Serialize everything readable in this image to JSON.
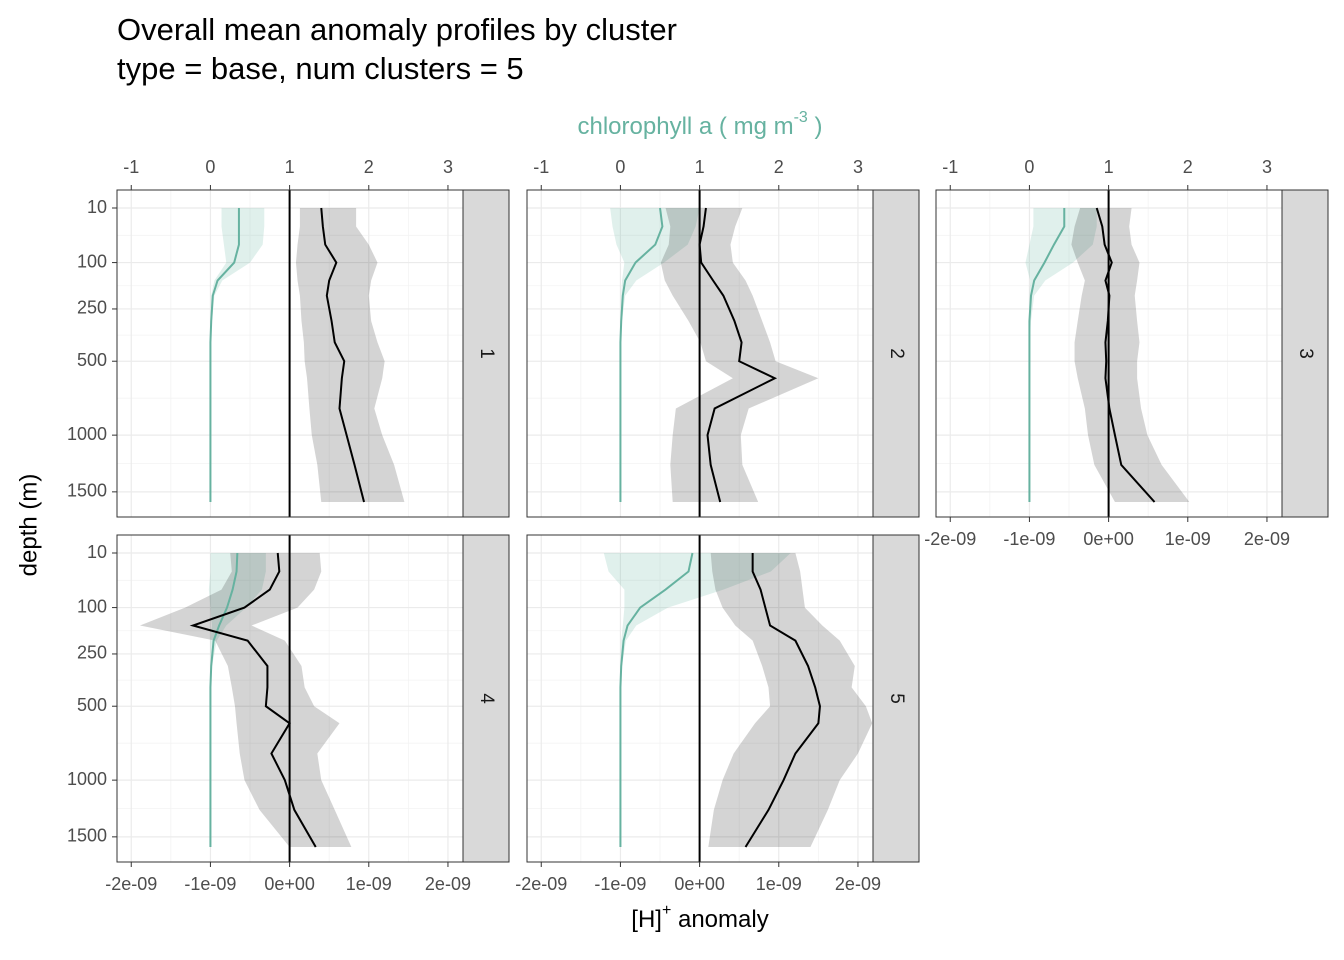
{
  "chart_data": {
    "type": "line",
    "title": "Overall mean anomaly profiles by cluster",
    "subtitle": "type = base, num clusters = 5",
    "x_label": {
      "text": "[H]",
      "sup": "+",
      "after": " anomaly"
    },
    "x2_label": {
      "text": "chlorophyll a ( mg m",
      "sup": "-3",
      "after": " )"
    },
    "y_label": "depth (m)",
    "y_scale": "sqrt",
    "y_reversed": true,
    "ylim": [
      0.82,
      1754
    ],
    "yticks": [
      10,
      100,
      250,
      500,
      1000,
      1500
    ],
    "xlim": [
      -2.18e-09,
      2.19e-09
    ],
    "xticks": [
      {
        "value": -2e-09,
        "label": "-2e-09"
      },
      {
        "value": -1e-09,
        "label": "-1e-09"
      },
      {
        "value": 0,
        "label": "0e+00"
      },
      {
        "value": 1e-09,
        "label": "1e-09"
      },
      {
        "value": 2e-09,
        "label": "2e-09"
      }
    ],
    "x2lim": [
      -1.18,
      3.19
    ],
    "x2ticks": [
      -1,
      0,
      1,
      2,
      3
    ],
    "x2_color": "#66b2a0",
    "grid": true,
    "vline": 0,
    "depth": [
      10,
      30,
      60,
      100,
      150,
      200,
      300,
      400,
      500,
      600,
      800,
      1000,
      1250,
      1600
    ],
    "panels": [
      {
        "label": "1",
        "series": [
          {
            "axis": "x2",
            "color": "#66b2a0",
            "values": [
              0.36,
              0.36,
              0.36,
              0.3,
              0.09,
              0.03,
              0.01,
              0,
              0,
              0,
              0,
              0,
              0,
              0
            ],
            "lower": [
              0.14,
              0.14,
              0.17,
              0.2,
              0.05,
              0.01,
              0,
              0,
              0,
              0,
              0,
              0,
              0,
              0
            ],
            "upper": [
              0.68,
              0.68,
              0.66,
              0.5,
              0.15,
              0.05,
              0.02,
              0,
              0,
              0,
              0,
              0,
              0,
              0
            ]
          },
          {
            "axis": "x",
            "color": "#000000",
            "values": [
              4e-10,
              4.2e-10,
              4.5e-10,
              5.9e-10,
              5e-10,
              4.7e-10,
              5.3e-10,
              5.7e-10,
              6.9e-10,
              6.6e-10,
              6.3e-10,
              7.2e-10,
              8.2e-10,
              9.4e-10
            ],
            "lower": [
              1.3e-10,
              1.3e-10,
              1e-10,
              8e-11,
              1e-10,
              1.3e-10,
              1.5e-10,
              1.8e-10,
              1.9e-10,
              2.2e-10,
              2.5e-10,
              2.8e-10,
              3.5e-10,
              4e-10
            ],
            "upper": [
              8.4e-10,
              8.4e-10,
              1e-09,
              1.11e-09,
              1.03e-09,
              1e-09,
              1.03e-09,
              1.11e-09,
              1.2e-09,
              1.17e-09,
              1.07e-09,
              1.17e-09,
              1.32e-09,
              1.45e-09
            ]
          }
        ]
      },
      {
        "label": "2",
        "series": [
          {
            "axis": "x2",
            "color": "#66b2a0",
            "values": [
              0.5,
              0.53,
              0.44,
              0.19,
              0.06,
              0.03,
              0.01,
              0,
              0,
              0,
              0,
              0,
              0,
              0
            ],
            "lower": [
              -0.13,
              -0.1,
              -0.05,
              0.05,
              0.02,
              0.01,
              0,
              0,
              0,
              0,
              0,
              0,
              0,
              0
            ],
            "upper": [
              1.0,
              0.95,
              0.85,
              0.55,
              0.2,
              0.06,
              0.02,
              0,
              0,
              0,
              0,
              0,
              0,
              0
            ]
          },
          {
            "axis": "x",
            "color": "#000000",
            "values": [
              8e-11,
              5e-11,
              0,
              2e-11,
              1.7e-10,
              3e-10,
              4.4e-10,
              5.3e-10,
              5e-10,
              9.5e-10,
              1.9e-10,
              1e-10,
              1.4e-10,
              2.6e-10
            ],
            "lower": [
              -4.3e-10,
              -3.7e-10,
              -3.9e-10,
              -4.9e-10,
              -4.4e-10,
              -3.4e-10,
              -1.4e-10,
              1e-11,
              8e-11,
              4.2e-10,
              -3e-10,
              -3.4e-10,
              -3.7e-10,
              -3.4e-10
            ],
            "upper": [
              5.4e-10,
              4.5e-10,
              3.9e-10,
              4.2e-10,
              5.8e-10,
              6.7e-10,
              7.9e-10,
              8.9e-10,
              9.6e-10,
              1.5e-09,
              6.2e-10,
              5.2e-10,
              5.4e-10,
              7.4e-10
            ]
          }
        ]
      },
      {
        "label": "3",
        "series": [
          {
            "axis": "x2",
            "color": "#66b2a0",
            "values": [
              0.44,
              0.44,
              0.31,
              0.19,
              0.06,
              0.02,
              0,
              0,
              0,
              0,
              0,
              0,
              0,
              0
            ],
            "lower": [
              0.05,
              0.05,
              0,
              -0.05,
              0.01,
              0,
              0,
              0,
              0,
              0,
              0,
              0,
              0,
              0
            ],
            "upper": [
              0.85,
              0.85,
              0.8,
              0.55,
              0.2,
              0.06,
              0.02,
              0,
              0,
              0,
              0,
              0,
              0,
              0
            ]
          },
          {
            "axis": "x",
            "color": "#000000",
            "values": [
              -1.5e-10,
              -8e-11,
              -5e-11,
              4e-11,
              -4e-11,
              1e-11,
              -1e-11,
              -4e-11,
              -3e-11,
              -4e-11,
              1e-11,
              8e-11,
              1.6e-10,
              5.8e-10
            ],
            "lower": [
              -3.6e-10,
              -4.3e-10,
              -4.7e-10,
              -3.9e-10,
              -3e-10,
              -3.4e-10,
              -3.9e-10,
              -4.3e-10,
              -4.3e-10,
              -3.9e-10,
              -3e-10,
              -2.6e-10,
              -1.8e-10,
              8e-11
            ],
            "upper": [
              2.9e-10,
              2.6e-10,
              2.9e-10,
              3.9e-10,
              3.6e-10,
              3.3e-10,
              3.6e-10,
              3.9e-10,
              3.6e-10,
              3.6e-10,
              4.1e-10,
              4.9e-10,
              6.7e-10,
              1.02e-09
            ]
          }
        ]
      },
      {
        "label": "4",
        "series": [
          {
            "axis": "x2",
            "color": "#66b2a0",
            "values": [
              0.34,
              0.33,
              0.28,
              0.21,
              0.11,
              0.04,
              0.01,
              0,
              0,
              0,
              0,
              0,
              0,
              0
            ],
            "lower": [
              0,
              0,
              -0.02,
              0,
              0.02,
              0,
              0,
              0,
              0,
              0,
              0,
              0,
              0,
              0
            ],
            "upper": [
              0.7,
              0.7,
              0.65,
              0.45,
              0.2,
              0.08,
              0.02,
              0,
              0,
              0,
              0,
              0,
              0,
              0
            ]
          },
          {
            "axis": "x",
            "color": "#000000",
            "values": [
              -1.5e-10,
              -1.3e-10,
              -2.5e-10,
              -5.7e-10,
              -1.22e-09,
              -5.3e-10,
              -2.8e-10,
              -2.8e-10,
              -3e-10,
              0,
              -2.3e-10,
              -6e-11,
              6e-11,
              3.3e-10
            ],
            "lower": [
              -7.5e-10,
              -7.3e-10,
              -8.6e-10,
              -1.32e-09,
              -1.89e-09,
              -9.4e-10,
              -7.8e-10,
              -7.3e-10,
              -6.9e-10,
              -6.7e-10,
              -6.3e-10,
              -5.7e-10,
              -3.8e-10,
              0
            ],
            "upper": [
              3.8e-10,
              4e-10,
              3.1e-10,
              1e-10,
              -4.8e-10,
              -6e-11,
              1.5e-10,
              1.9e-10,
              3.1e-10,
              6.3e-10,
              3.5e-10,
              4e-10,
              5.7e-10,
              7.8e-10
            ]
          }
        ]
      },
      {
        "label": "5",
        "series": [
          {
            "axis": "x2",
            "color": "#66b2a0",
            "values": [
              0.91,
              0.86,
              0.57,
              0.25,
              0.09,
              0.04,
              0.01,
              0,
              0,
              0,
              0,
              0,
              0,
              0
            ],
            "lower": [
              -0.21,
              -0.15,
              0.05,
              0.05,
              0.03,
              0.01,
              0,
              0,
              0,
              0,
              0,
              0,
              0,
              0
            ],
            "upper": [
              2.15,
              1.9,
              1.3,
              0.6,
              0.2,
              0.07,
              0.02,
              0,
              0,
              0,
              0,
              0,
              0,
              0
            ]
          },
          {
            "axis": "x",
            "color": "#000000",
            "values": [
              6.7e-10,
              6.7e-10,
              7.7e-10,
              8.3e-10,
              8.9e-10,
              1.21e-09,
              1.37e-09,
              1.46e-09,
              1.52e-09,
              1.5e-09,
              1.21e-09,
              1.06e-09,
              8.7e-10,
              5.8e-10
            ],
            "lower": [
              1.4e-10,
              1.6e-10,
              2e-10,
              2.9e-10,
              4.5e-10,
              6.7e-10,
              7.9e-10,
              8.7e-10,
              8.9e-10,
              7e-10,
              4.3e-10,
              2.9e-10,
              1.8e-10,
              1.1e-10
            ],
            "upper": [
              1.21e-09,
              1.27e-09,
              1.3e-09,
              1.33e-09,
              1.55e-09,
              1.77e-09,
              1.96e-09,
              1.92e-09,
              2.1e-09,
              2.18e-09,
              2e-09,
              1.77e-09,
              1.62e-09,
              1.4e-09
            ]
          }
        ]
      }
    ]
  }
}
